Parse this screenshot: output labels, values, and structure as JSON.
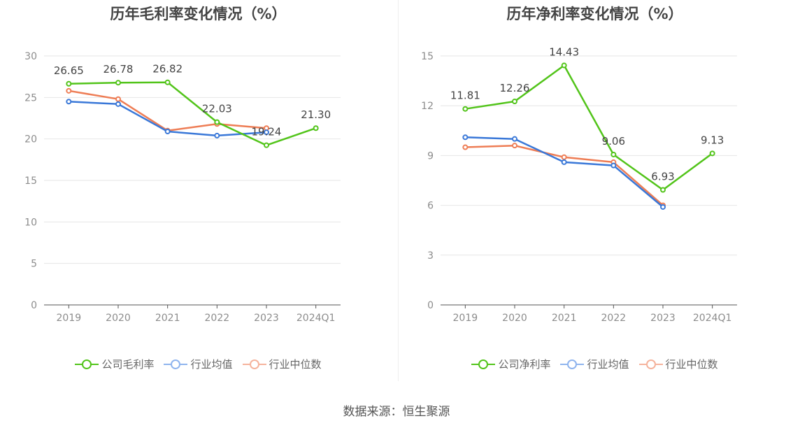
{
  "source_text": "数据来源：恒生聚源",
  "colors": {
    "company": "#52c41a",
    "industry_avg": "#3a78d8",
    "industry_median": "#ee7d55",
    "grid": "#e6e6e6",
    "axis": "#555555"
  },
  "chart_data": [
    {
      "type": "line",
      "title": "历年毛利率变化情况（%）",
      "categories": [
        "2019",
        "2020",
        "2021",
        "2022",
        "2023",
        "2024Q1"
      ],
      "ylim": [
        0,
        30
      ],
      "yticks": [
        "0",
        "5",
        "10",
        "15",
        "20",
        "25",
        "30"
      ],
      "grid": true,
      "legend_position": "bottom",
      "series": [
        {
          "name": "公司毛利率",
          "key": "company",
          "values": [
            26.65,
            26.78,
            26.82,
            22.03,
            19.24,
            21.3
          ],
          "labels": [
            "26.65",
            "26.78",
            "26.82",
            "22.03",
            "19.24",
            "21.30"
          ]
        },
        {
          "name": "行业均值",
          "key": "industry_avg",
          "values": [
            24.5,
            24.2,
            20.9,
            20.4,
            20.8,
            null
          ]
        },
        {
          "name": "行业中位数",
          "key": "industry_median",
          "values": [
            25.8,
            24.8,
            21.0,
            21.8,
            21.3,
            null
          ]
        }
      ]
    },
    {
      "type": "line",
      "title": "历年净利率变化情况（%）",
      "categories": [
        "2019",
        "2020",
        "2021",
        "2022",
        "2023",
        "2024Q1"
      ],
      "ylim": [
        0,
        15
      ],
      "yticks": [
        "0",
        "3",
        "6",
        "9",
        "12",
        "15"
      ],
      "grid": true,
      "legend_position": "bottom",
      "series": [
        {
          "name": "公司净利率",
          "key": "company",
          "values": [
            11.81,
            12.26,
            14.43,
            9.06,
            6.93,
            9.13
          ],
          "labels": [
            "11.81",
            "12.26",
            "14.43",
            "9.06",
            "6.93",
            "9.13"
          ]
        },
        {
          "name": "行业均值",
          "key": "industry_avg",
          "values": [
            10.1,
            10.0,
            8.6,
            8.4,
            5.9,
            null
          ]
        },
        {
          "name": "行业中位数",
          "key": "industry_median",
          "values": [
            9.5,
            9.6,
            8.9,
            8.6,
            6.0,
            null
          ]
        }
      ]
    }
  ]
}
